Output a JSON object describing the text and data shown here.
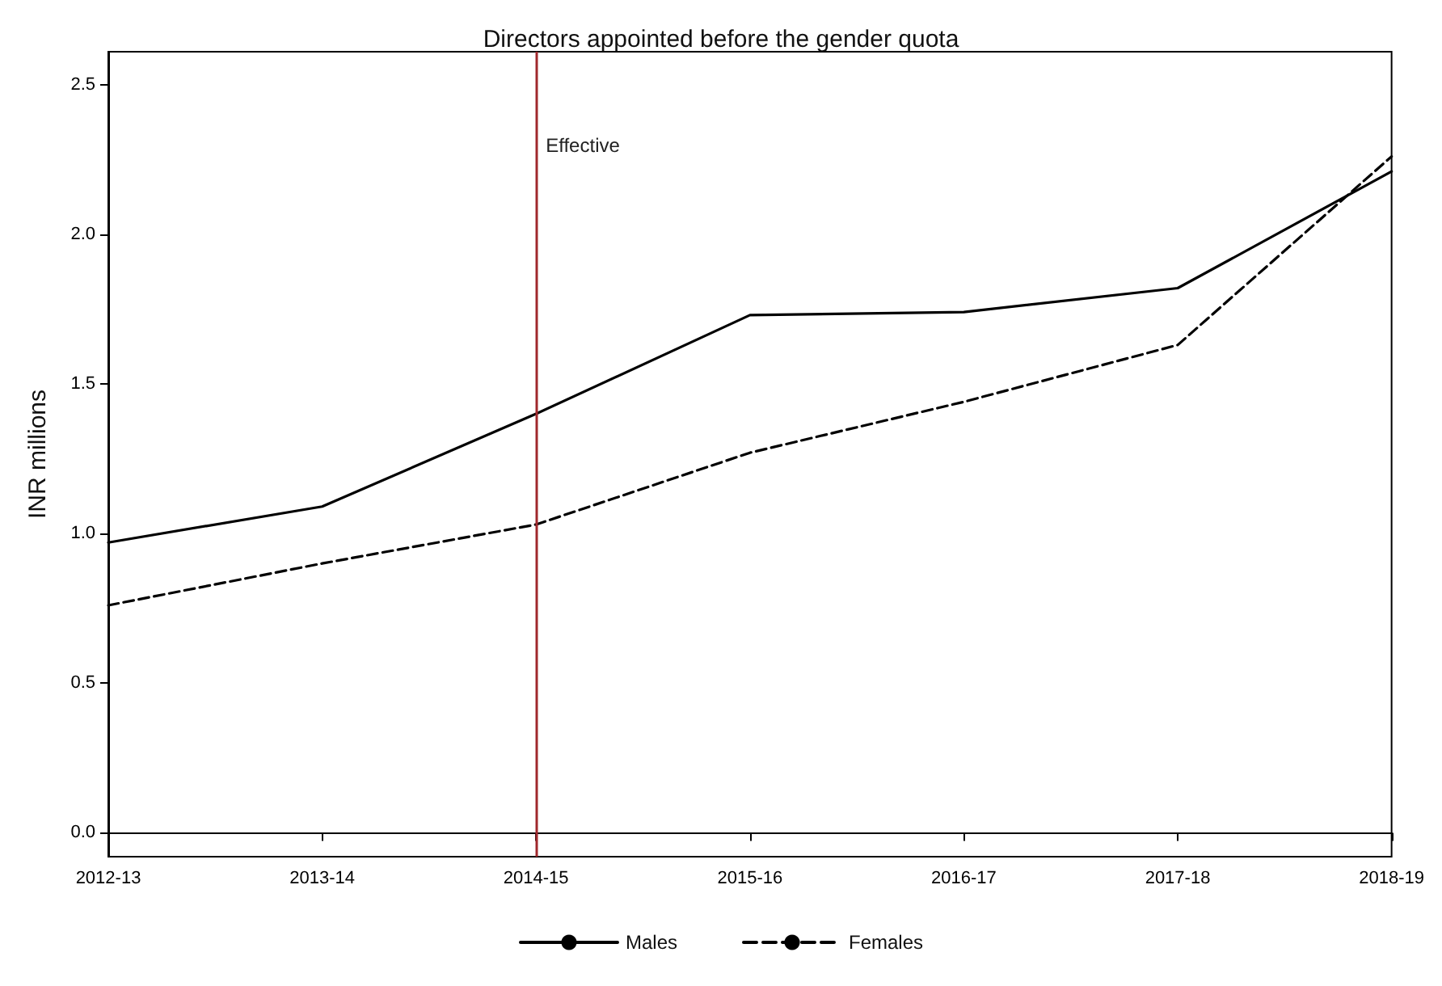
{
  "chart_data": {
    "type": "line",
    "title": "Directors appointed before the gender quota",
    "ylabel": "INR millions",
    "categories": [
      "2012-13",
      "2013-14",
      "2014-15",
      "2015-16",
      "2016-17",
      "2017-18",
      "2018-19"
    ],
    "series": [
      {
        "name": "Males",
        "color": "#000000",
        "line_style": "solid",
        "values": [
          0.97,
          1.09,
          1.4,
          1.73,
          1.74,
          1.82,
          2.21
        ]
      },
      {
        "name": "Females",
        "color": "#000000",
        "line_style": "dashed",
        "values": [
          0.76,
          0.9,
          1.03,
          1.27,
          1.44,
          1.63,
          2.26
        ]
      }
    ],
    "ylim": [
      -0.08,
      2.61
    ],
    "yticks": [
      {
        "value": 0,
        "label": "0.0"
      },
      {
        "value": 0.5,
        "label": "0.5"
      },
      {
        "value": 1,
        "label": "1.0"
      },
      {
        "value": 1.5,
        "label": "1.5"
      },
      {
        "value": 2,
        "label": "2.0"
      },
      {
        "value": 2.5,
        "label": "2.5"
      }
    ],
    "ref_lines": [
      {
        "axis": "x",
        "value": "2014-15",
        "label": "Effective",
        "color": "#a0282d"
      }
    ],
    "grid": false,
    "legend": "bottom",
    "marker": "none"
  }
}
